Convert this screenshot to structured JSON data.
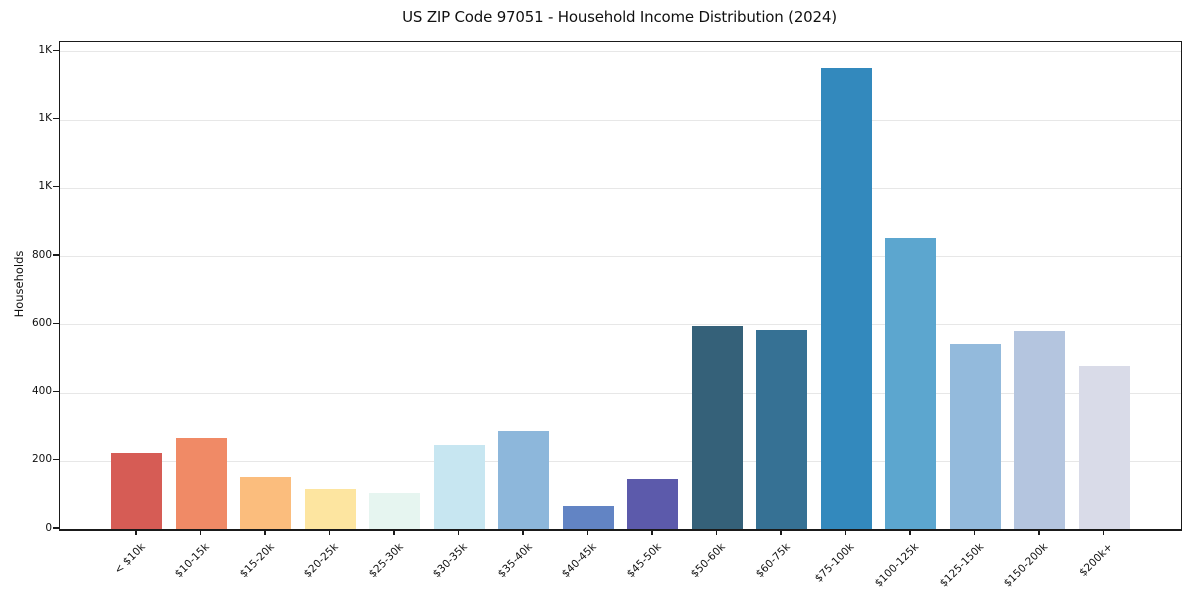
{
  "figure": {
    "title": "US ZIP Code 97051 - Household Income Distribution (2024)"
  },
  "chart_data": {
    "type": "bar",
    "title": "US ZIP Code 97051 - Household Income Distribution (2024)",
    "xlabel": "",
    "ylabel": "Households",
    "categories": [
      "< $10k",
      "$10-15k",
      "$15-20k",
      "$20-25k",
      "$25-30k",
      "$30-35k",
      "$35-40k",
      "$40-45k",
      "$45-50k",
      "$50-60k",
      "$60-75k",
      "$75-100k",
      "$100-125k",
      "$125-150k",
      "$150-200k",
      "$200k+"
    ],
    "values": [
      222,
      266,
      153,
      118,
      107,
      247,
      286,
      68,
      146,
      595,
      583,
      1350,
      852,
      542,
      580,
      477
    ],
    "bar_colors": [
      "#d65c55",
      "#f08a66",
      "#fbbd7d",
      "#fde5a0",
      "#e6f5f0",
      "#c7e6f1",
      "#8db7db",
      "#6284c4",
      "#5c5aab",
      "#356179",
      "#367194",
      "#3389bd",
      "#5ca6cf",
      "#93badc",
      "#b4c5df",
      "#d9dbe8"
    ],
    "ylim": [
      0,
      1427
    ],
    "yticks": {
      "values": [
        0,
        200,
        400,
        600,
        800,
        1000,
        1200,
        1400
      ],
      "labels": [
        "0",
        "200",
        "400",
        "600",
        "800",
        "1K",
        "1K",
        "1K"
      ]
    },
    "grid": true,
    "legend": "none"
  }
}
